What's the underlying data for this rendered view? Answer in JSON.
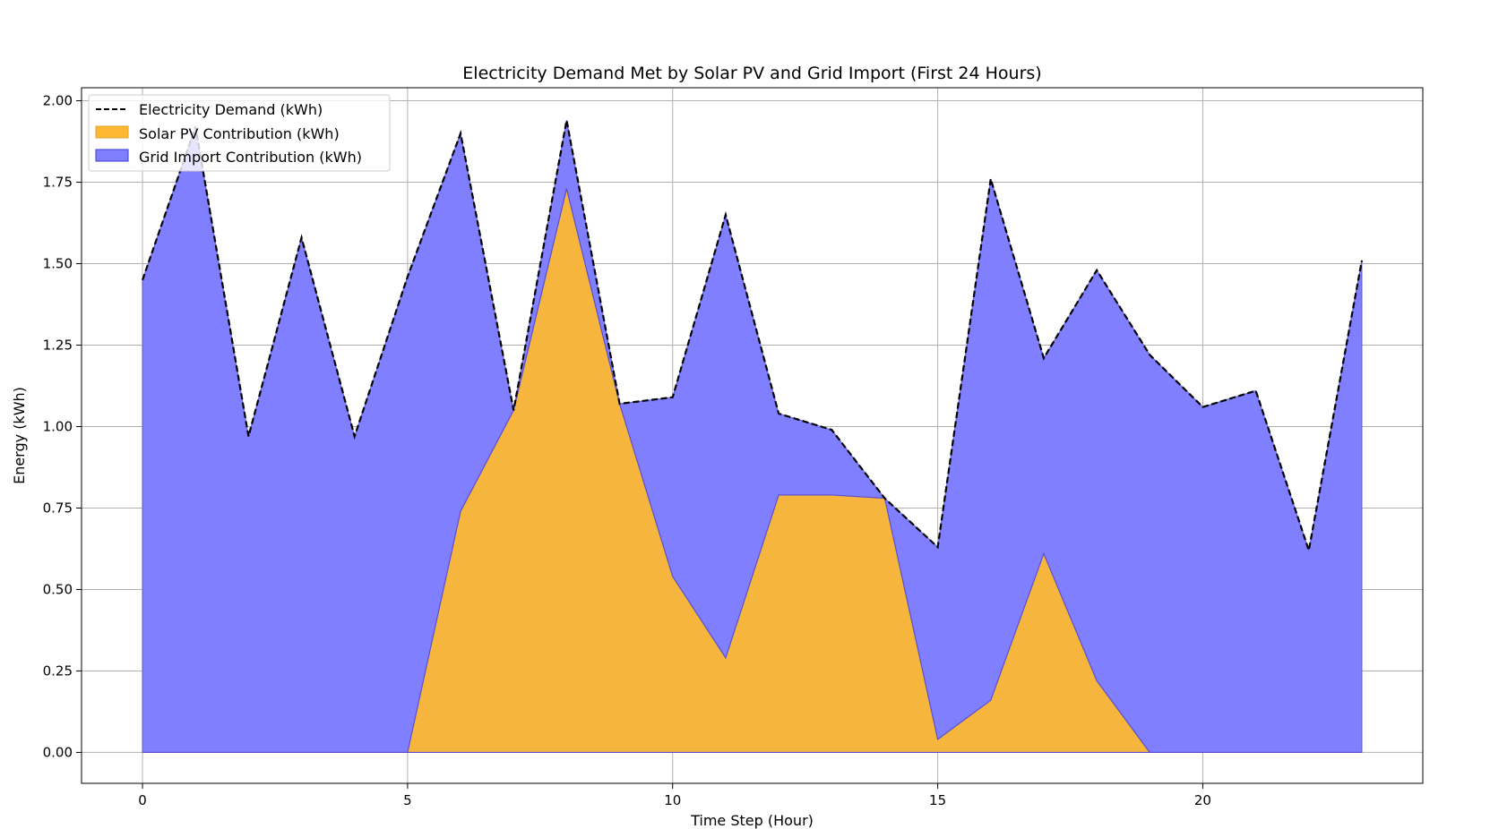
{
  "chart_data": {
    "type": "area",
    "title": "Electricity Demand Met by Solar PV and Grid Import (First 24 Hours)",
    "xlabel": "Time Step (Hour)",
    "ylabel": "Energy (kWh)",
    "xlim": [
      -1.15,
      24.15
    ],
    "ylim": [
      -0.095,
      2.04
    ],
    "xticks": [
      0,
      5,
      10,
      15,
      20
    ],
    "xtick_labels": [
      "0",
      "5",
      "10",
      "15",
      "20"
    ],
    "yticks": [
      0,
      0.25,
      0.5,
      0.75,
      1.0,
      1.25,
      1.5,
      1.75,
      2.0
    ],
    "ytick_labels": [
      "0.00",
      "0.25",
      "0.50",
      "0.75",
      "1.00",
      "1.25",
      "1.50",
      "1.75",
      "2.00"
    ],
    "grid": true,
    "legend_position": "upper-left",
    "x": [
      0,
      1,
      2,
      3,
      4,
      5,
      6,
      7,
      8,
      9,
      10,
      11,
      12,
      13,
      14,
      15,
      16,
      17,
      18,
      19,
      20,
      21,
      22,
      23
    ],
    "series": [
      {
        "name": "Electricity Demand (kWh)",
        "kind": "line",
        "style": "dashed",
        "color": "#000000",
        "values": [
          1.45,
          1.92,
          0.97,
          1.58,
          0.97,
          1.46,
          1.9,
          1.05,
          1.94,
          1.07,
          1.09,
          1.65,
          1.04,
          0.99,
          0.78,
          0.63,
          1.76,
          1.21,
          1.48,
          1.22,
          1.06,
          1.11,
          0.62,
          1.51
        ]
      },
      {
        "name": "Solar PV Contribution (kWh)",
        "kind": "area",
        "color": "#fdb833",
        "values": [
          0,
          0,
          0,
          0,
          0,
          0,
          0.74,
          1.05,
          1.73,
          1.07,
          0.54,
          0.29,
          0.79,
          0.79,
          0.78,
          0.04,
          0.16,
          0.61,
          0.22,
          0,
          0,
          0,
          0,
          0
        ]
      },
      {
        "name": "Grid Import Contribution (kWh)",
        "kind": "area",
        "color": "#7f7fff",
        "values": [
          1.45,
          1.92,
          0.97,
          1.58,
          0.97,
          1.46,
          1.16,
          0,
          0.21,
          0,
          0.55,
          1.36,
          0.25,
          0.2,
          0,
          0.59,
          1.6,
          0.6,
          1.26,
          1.22,
          1.06,
          1.11,
          0.62,
          1.51
        ]
      }
    ]
  }
}
